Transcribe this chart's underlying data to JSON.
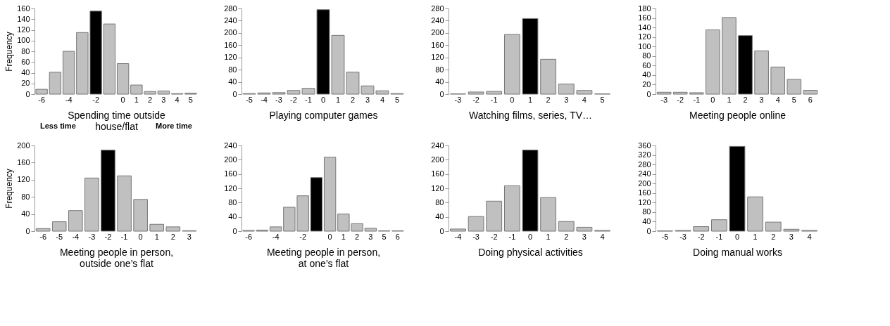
{
  "chart_data": [
    {
      "type": "bar",
      "xlabel": "Spending time outside\nhouse/flat",
      "ylabel": "Frequency",
      "annotations": [
        "Less time",
        "More time"
      ],
      "categories": [
        "-6",
        null,
        "-4",
        null,
        "-2",
        null,
        "0",
        "1",
        "2",
        "3",
        "4",
        "5"
      ],
      "values": [
        9,
        41,
        80,
        115,
        155,
        131,
        57,
        17,
        5,
        6,
        1,
        2
      ],
      "colors": [
        "#c0c0c0",
        "#c0c0c0",
        "#c0c0c0",
        "#c0c0c0",
        "#000000",
        "#c0c0c0",
        "#c0c0c0",
        "#c0c0c0",
        "#c0c0c0",
        "#c0c0c0",
        "#c0c0c0",
        "#c0c0c0"
      ],
      "ylim": [
        0,
        160
      ],
      "yticks": [
        0,
        20,
        40,
        60,
        80,
        100,
        120,
        140,
        160
      ],
      "grid": false
    },
    {
      "type": "bar",
      "xlabel": "Playing computer games",
      "categories": [
        "-5",
        "-4",
        "-3",
        "-2",
        "-1",
        "0",
        "1",
        "2",
        "3",
        "4",
        "5"
      ],
      "values": [
        2,
        4,
        5,
        12,
        19,
        276,
        192,
        72,
        27,
        11,
        2
      ],
      "colors": [
        "#c0c0c0",
        "#c0c0c0",
        "#c0c0c0",
        "#c0c0c0",
        "#c0c0c0",
        "#000000",
        "#c0c0c0",
        "#c0c0c0",
        "#c0c0c0",
        "#c0c0c0",
        "#c0c0c0"
      ],
      "ylim": [
        0,
        280
      ],
      "yticks": [
        0,
        40,
        80,
        120,
        160,
        200,
        240,
        280
      ],
      "grid": false
    },
    {
      "type": "bar",
      "xlabel": "Watching films, series, TV…",
      "categories": [
        "-3",
        "-2",
        "-1",
        "0",
        "1",
        "2",
        "3",
        "4",
        "5"
      ],
      "values": [
        1,
        7,
        9,
        195,
        247,
        114,
        33,
        12,
        1
      ],
      "colors": [
        "#c0c0c0",
        "#c0c0c0",
        "#c0c0c0",
        "#c0c0c0",
        "#000000",
        "#c0c0c0",
        "#c0c0c0",
        "#c0c0c0",
        "#c0c0c0"
      ],
      "ylim": [
        0,
        280
      ],
      "yticks": [
        0,
        40,
        80,
        120,
        160,
        200,
        240,
        280
      ],
      "grid": false
    },
    {
      "type": "bar",
      "xlabel": "Meeting people online",
      "categories": [
        "-3",
        "-2",
        "-1",
        "0",
        "1",
        "2",
        "3",
        "4",
        "5",
        "6"
      ],
      "values": [
        4,
        4,
        3,
        135,
        161,
        123,
        91,
        57,
        31,
        8
      ],
      "colors": [
        "#c0c0c0",
        "#c0c0c0",
        "#c0c0c0",
        "#c0c0c0",
        "#c0c0c0",
        "#000000",
        "#c0c0c0",
        "#c0c0c0",
        "#c0c0c0",
        "#c0c0c0"
      ],
      "ylim": [
        0,
        180
      ],
      "yticks": [
        0,
        20,
        40,
        60,
        80,
        100,
        120,
        140,
        160,
        180
      ],
      "grid": false
    },
    {
      "type": "bar",
      "xlabel": "Meeting people in person,\noutside one’s flat",
      "ylabel": "Frequency",
      "categories": [
        "-6",
        "-5",
        "-4",
        "-3",
        "-2",
        "-1",
        "0",
        "1",
        "2",
        "3"
      ],
      "values": [
        6,
        22,
        48,
        124,
        189,
        129,
        74,
        16,
        10,
        1
      ],
      "colors": [
        "#c0c0c0",
        "#c0c0c0",
        "#c0c0c0",
        "#c0c0c0",
        "#000000",
        "#c0c0c0",
        "#c0c0c0",
        "#c0c0c0",
        "#c0c0c0",
        "#c0c0c0"
      ],
      "ylim": [
        0,
        200
      ],
      "yticks": [
        0,
        40,
        80,
        120,
        160,
        200
      ],
      "grid": false
    },
    {
      "type": "bar",
      "xlabel": "Meeting people in person,\nat one’s flat",
      "categories": [
        "-6",
        null,
        "-4",
        null,
        "-2",
        null,
        "0",
        "1",
        "2",
        "3",
        "5",
        "6"
      ],
      "values": [
        2,
        3,
        12,
        67,
        99,
        150,
        207,
        48,
        21,
        8,
        1,
        1
      ],
      "colors": [
        "#c0c0c0",
        "#c0c0c0",
        "#c0c0c0",
        "#c0c0c0",
        "#c0c0c0",
        "#000000",
        "#c0c0c0",
        "#c0c0c0",
        "#c0c0c0",
        "#c0c0c0",
        "#c0c0c0",
        "#c0c0c0"
      ],
      "ylim": [
        0,
        240
      ],
      "yticks": [
        0,
        40,
        80,
        120,
        160,
        200,
        240
      ],
      "grid": false
    },
    {
      "type": "bar",
      "xlabel": "Doing physical activities",
      "categories": [
        "-4",
        "-3",
        "-2",
        "-1",
        "0",
        "1",
        "2",
        "3",
        "4"
      ],
      "values": [
        6,
        41,
        84,
        127,
        227,
        94,
        27,
        11,
        2
      ],
      "colors": [
        "#c0c0c0",
        "#c0c0c0",
        "#c0c0c0",
        "#c0c0c0",
        "#000000",
        "#c0c0c0",
        "#c0c0c0",
        "#c0c0c0",
        "#c0c0c0"
      ],
      "ylim": [
        0,
        240
      ],
      "yticks": [
        0,
        40,
        80,
        120,
        160,
        200,
        240
      ],
      "grid": false
    },
    {
      "type": "bar",
      "xlabel": "Doing manual works",
      "categories": [
        "-5",
        "-3",
        "-2",
        "-1",
        "0",
        "1",
        "2",
        "3",
        "4"
      ],
      "values": [
        1,
        3,
        19,
        48,
        356,
        144,
        38,
        8,
        3
      ],
      "colors": [
        "#c0c0c0",
        "#c0c0c0",
        "#c0c0c0",
        "#c0c0c0",
        "#000000",
        "#c0c0c0",
        "#c0c0c0",
        "#c0c0c0",
        "#c0c0c0"
      ],
      "ylim": [
        0,
        360
      ],
      "yticks": [
        0,
        40,
        80,
        120,
        160,
        200,
        240,
        280,
        320,
        360
      ],
      "grid": false
    }
  ]
}
